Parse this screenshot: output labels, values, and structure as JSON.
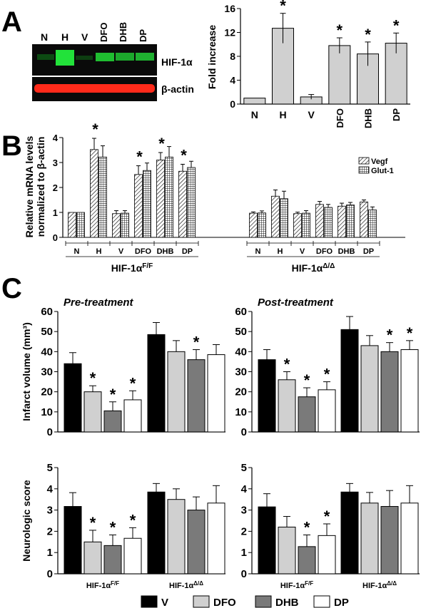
{
  "panels": {
    "A": "A",
    "B": "B",
    "C": "C"
  },
  "blot": {
    "lanes": [
      "N",
      "H",
      "V",
      "DFO",
      "DHB",
      "DP"
    ],
    "band_labels": [
      "HIF-1α",
      "β-actin"
    ],
    "colors": {
      "hif": "#00ff33",
      "actin": "#ff2a1a",
      "bg": "#0a0a0a"
    }
  },
  "legend_C": [
    {
      "name": "V",
      "color": "#000000"
    },
    {
      "name": "DFO",
      "color": "#d0d0d0"
    },
    {
      "name": "DHB",
      "color": "#7a7a7a"
    },
    {
      "name": "DP",
      "color": "#ffffff"
    }
  ],
  "chart_data": [
    {
      "id": "A-bar",
      "type": "bar",
      "categories": [
        "N",
        "H",
        "V",
        "DFO",
        "DHB",
        "DP"
      ],
      "values": [
        1.0,
        12.7,
        1.2,
        9.8,
        8.4,
        10.2
      ],
      "errors": [
        0,
        2.5,
        0.4,
        1.3,
        2.0,
        1.7
      ],
      "significant": [
        false,
        true,
        false,
        true,
        true,
        true
      ],
      "ylabel": "Fold increase",
      "ylim": [
        0,
        16
      ],
      "yticks": [
        0,
        4,
        8,
        12,
        16
      ],
      "color": "#d0d0d0"
    },
    {
      "id": "B-bar",
      "type": "bar",
      "groups": [
        "HIF-1αF/F",
        "HIF-1αΔ/Δ"
      ],
      "group_labels": [
        {
          "base": "HIF-1α",
          "sup": "F/F"
        },
        {
          "base": "HIF-1α",
          "sup": "Δ/Δ"
        }
      ],
      "categories": [
        "N",
        "H",
        "V",
        "DFO",
        "DHB",
        "DP"
      ],
      "ylabel_lines": [
        "Relative mRNA levels",
        "normalized to β-actin"
      ],
      "ylim": [
        0,
        4
      ],
      "yticks": [
        0,
        1,
        2,
        3,
        4
      ],
      "series": [
        {
          "name": "Vegf",
          "pattern": "diag",
          "values": [
            [
              1.0,
              3.52,
              0.95,
              2.52,
              3.1,
              2.65
            ],
            [
              0.97,
              1.65,
              0.95,
              1.32,
              1.25,
              1.42
            ]
          ],
          "errors": [
            [
              0,
              0.45,
              0.12,
              0.35,
              0.3,
              0.28
            ],
            [
              0.05,
              0.25,
              0.06,
              0.12,
              0.12,
              0.08
            ]
          ]
        },
        {
          "name": "Glut-1",
          "pattern": "grid",
          "values": [
            [
              1.0,
              3.22,
              0.97,
              2.68,
              3.22,
              2.8
            ],
            [
              0.98,
              1.55,
              0.97,
              1.2,
              1.3,
              1.1
            ]
          ],
          "errors": [
            [
              0,
              0.45,
              0.1,
              0.3,
              0.42,
              0.25
            ],
            [
              0.08,
              0.3,
              0.1,
              0.12,
              0.1,
              0.12
            ]
          ]
        }
      ],
      "significant": [
        [
          false,
          true,
          false,
          true,
          true,
          true
        ],
        [
          false,
          false,
          false,
          false,
          false,
          false
        ]
      ]
    },
    {
      "id": "C-infarct-pre",
      "type": "bar",
      "title": "Pre-treatment",
      "ylabel": "Infarct volume (mm³)",
      "ylim": [
        0,
        60
      ],
      "yticks": [
        0,
        10,
        20,
        30,
        40,
        50,
        60
      ],
      "groups": [
        "HIF-1αF/F",
        "HIF-1αΔ/Δ"
      ],
      "series": [
        {
          "name": "V",
          "values": [
            34.0,
            48.5
          ],
          "errors": [
            5.5,
            6.0
          ]
        },
        {
          "name": "DFO",
          "values": [
            20.0,
            40.0
          ],
          "errors": [
            3.0,
            5.5
          ]
        },
        {
          "name": "DHB",
          "values": [
            10.5,
            36.0
          ],
          "errors": [
            4.5,
            5.0
          ]
        },
        {
          "name": "DP",
          "values": [
            16.0,
            38.5
          ],
          "errors": [
            4.5,
            5.0
          ]
        }
      ],
      "significant": [
        [
          false,
          true,
          true,
          true
        ],
        [
          false,
          false,
          true,
          false
        ]
      ]
    },
    {
      "id": "C-infarct-post",
      "type": "bar",
      "title": "Post-treatment",
      "ylim": [
        0,
        60
      ],
      "yticks": [
        0,
        10,
        20,
        30,
        40,
        50,
        60
      ],
      "groups": [
        "HIF-1αF/F",
        "HIF-1αΔ/Δ"
      ],
      "series": [
        {
          "name": "V",
          "values": [
            36.0,
            51.0
          ],
          "errors": [
            5.0,
            6.5
          ]
        },
        {
          "name": "DFO",
          "values": [
            26.0,
            43.0
          ],
          "errors": [
            4.0,
            5.0
          ]
        },
        {
          "name": "DHB",
          "values": [
            17.5,
            40.0
          ],
          "errors": [
            4.5,
            4.5
          ]
        },
        {
          "name": "DP",
          "values": [
            21.0,
            41.0
          ],
          "errors": [
            4.0,
            4.5
          ]
        }
      ],
      "significant": [
        [
          false,
          true,
          true,
          true
        ],
        [
          false,
          false,
          true,
          true
        ]
      ]
    },
    {
      "id": "C-neuro-pre",
      "type": "bar",
      "ylabel": "Neurologic score",
      "ylim": [
        0,
        5
      ],
      "yticks": [
        0,
        1,
        2,
        3,
        4,
        5
      ],
      "groups": [
        "HIF-1αF/F",
        "HIF-1αΔ/Δ"
      ],
      "group_labels": [
        {
          "base": "HIF-1α",
          "sup": "F/F"
        },
        {
          "base": "HIF-1α",
          "sup": "Δ/Δ"
        }
      ],
      "series": [
        {
          "name": "V",
          "values": [
            3.17,
            3.85
          ],
          "errors": [
            0.65,
            0.4
          ]
        },
        {
          "name": "DFO",
          "values": [
            1.5,
            3.5
          ],
          "errors": [
            0.55,
            0.5
          ]
        },
        {
          "name": "DHB",
          "values": [
            1.33,
            3.0
          ],
          "errors": [
            0.5,
            0.62
          ]
        },
        {
          "name": "DP",
          "values": [
            1.67,
            3.33
          ],
          "errors": [
            0.5,
            0.82
          ]
        }
      ],
      "significant": [
        [
          false,
          true,
          true,
          true
        ],
        [
          false,
          false,
          false,
          false
        ]
      ]
    },
    {
      "id": "C-neuro-post",
      "type": "bar",
      "ylim": [
        0,
        5
      ],
      "yticks": [
        0,
        1,
        2,
        3,
        4,
        5
      ],
      "groups": [
        "HIF-1αF/F",
        "HIF-1αΔ/Δ"
      ],
      "group_labels": [
        {
          "base": "HIF-1α",
          "sup": "F/F"
        },
        {
          "base": "HIF-1α",
          "sup": "Δ/Δ"
        }
      ],
      "series": [
        {
          "name": "V",
          "values": [
            3.15,
            3.85
          ],
          "errors": [
            0.62,
            0.4
          ]
        },
        {
          "name": "DFO",
          "values": [
            2.2,
            3.33
          ],
          "errors": [
            0.5,
            0.5
          ]
        },
        {
          "name": "DHB",
          "values": [
            1.28,
            3.17
          ],
          "errors": [
            0.55,
            0.75
          ]
        },
        {
          "name": "DP",
          "values": [
            1.8,
            3.33
          ],
          "errors": [
            0.55,
            0.82
          ]
        }
      ],
      "significant": [
        [
          false,
          false,
          true,
          true
        ],
        [
          false,
          false,
          false,
          false
        ]
      ]
    }
  ]
}
